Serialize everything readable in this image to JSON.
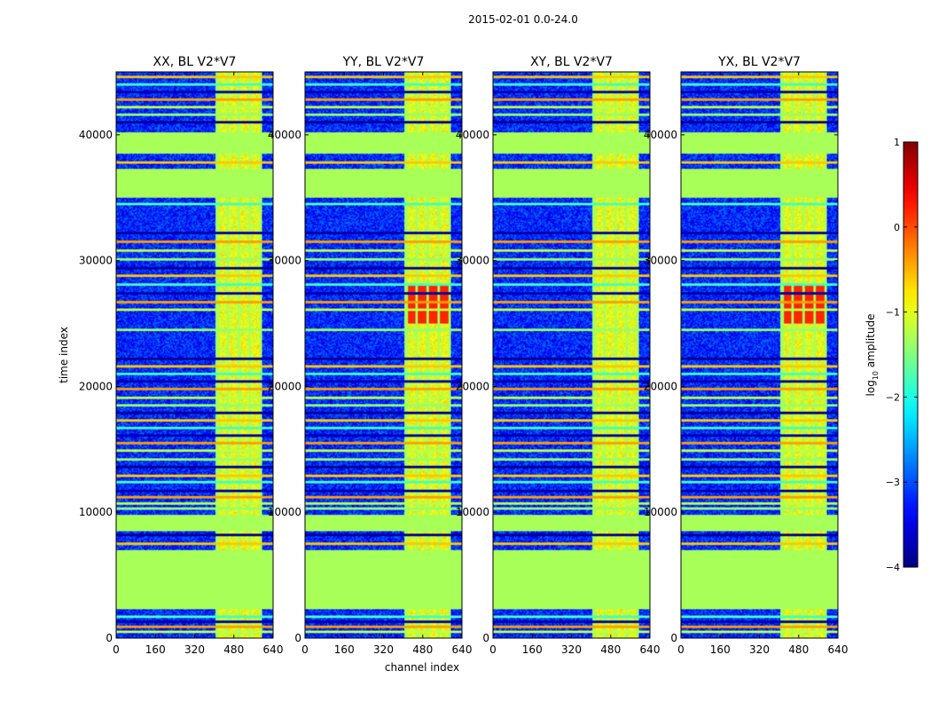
{
  "suptitle": "2015-02-01 0.0-24.0",
  "xlabel": "channel index",
  "ylabel": "time index",
  "colorbar": {
    "label_prefix": "log",
    "label_sub": "10",
    "label_suffix": " amplitude",
    "min": -4,
    "max": 1,
    "ticks": [
      "1",
      "0",
      "−1",
      "−2",
      "−3",
      "−4"
    ],
    "tick_values": [
      1,
      0,
      -1,
      -2,
      -3,
      -4
    ]
  },
  "chart_data": {
    "type": "heatmap",
    "colormap": "jet",
    "xlim": [
      0,
      640
    ],
    "ylim": [
      0,
      45000
    ],
    "x_ticks": [
      0,
      160,
      320,
      480,
      640
    ],
    "y_ticks": [
      0,
      10000,
      20000,
      30000,
      40000
    ],
    "x_tick_labels": [
      "0",
      "160",
      "320",
      "480",
      "640"
    ],
    "y_tick_labels": [
      "0",
      "10000",
      "20000",
      "30000",
      "40000"
    ],
    "panels": [
      {
        "title": "XX, BL V2*V7",
        "bright": 0
      },
      {
        "title": "YY, BL V2*V7",
        "bright": 1
      },
      {
        "title": "XY, BL V2*V7",
        "bright": 0
      },
      {
        "title": "YX, BL V2*V7",
        "bright": 1
      }
    ],
    "flagged_value": -1.3,
    "background_value": -3.2,
    "flagged_time_ranges": [
      [
        2300,
        7000
      ],
      [
        8500,
        9800
      ],
      [
        35000,
        37300
      ],
      [
        38500,
        40200
      ]
    ],
    "flagged_channel_ranges": [
      [
        405,
        420
      ],
      [
        448,
        460
      ],
      [
        495,
        505
      ],
      [
        540,
        552
      ],
      [
        585,
        595
      ]
    ],
    "band_channel_range": [
      405,
      595
    ],
    "band_value": -1.0,
    "bright_time_range": [
      25000,
      28000
    ],
    "bright_value": 0.2,
    "stripe_times": [
      500,
      900,
      1300,
      1700,
      7500,
      8200,
      10300,
      10700,
      11200,
      11700,
      12400,
      12900,
      13600,
      14200,
      14900,
      15500,
      16100,
      16700,
      17300,
      17900,
      18500,
      19100,
      19800,
      20400,
      21000,
      21600,
      22200,
      24500,
      26100,
      26700,
      27400,
      28100,
      28800,
      29400,
      30100,
      30800,
      31500,
      32200,
      34500,
      37800,
      41000,
      41600,
      42200,
      42800,
      43400,
      44000,
      44600
    ],
    "stripe_values": [
      -1.2,
      -0.4,
      -3.8,
      -1.8,
      -0.6,
      -3.9,
      -1.4
    ]
  }
}
